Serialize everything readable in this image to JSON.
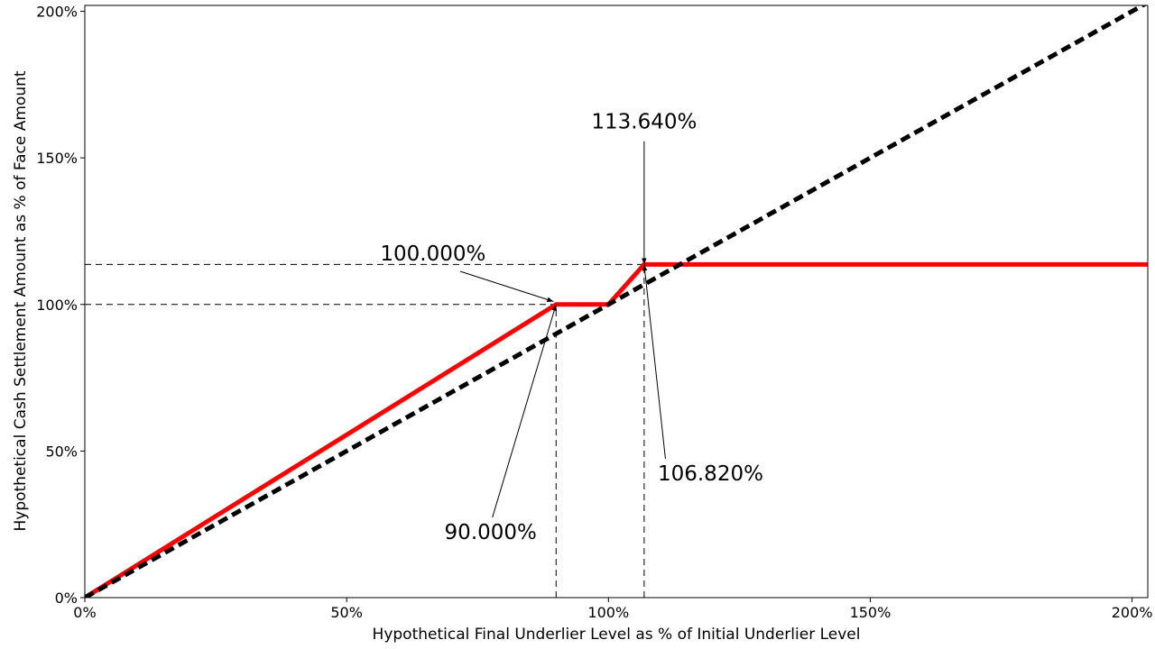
{
  "chart_data": {
    "type": "line",
    "title": "",
    "xlabel": "Hypothetical Final Underlier Level as % of Initial Underlier Level",
    "ylabel": "Hypothetical Cash Settlement Amount as % of Face Amount",
    "xlim": [
      0,
      203
    ],
    "ylim": [
      0,
      202
    ],
    "x_ticks": [
      {
        "value": 0,
        "label": "0%"
      },
      {
        "value": 50,
        "label": "50%"
      },
      {
        "value": 100,
        "label": "100%"
      },
      {
        "value": 150,
        "label": "150%"
      },
      {
        "value": 200,
        "label": "200%"
      }
    ],
    "y_ticks": [
      {
        "value": 0,
        "label": "0%"
      },
      {
        "value": 50,
        "label": "50%"
      },
      {
        "value": 100,
        "label": "100%"
      },
      {
        "value": 150,
        "label": "150%"
      },
      {
        "value": 200,
        "label": "200%"
      }
    ],
    "grid": false,
    "legend": "none",
    "series": [
      {
        "style": "solid",
        "color": "#ff0000",
        "points": [
          [
            0,
            0
          ],
          [
            90,
            100
          ],
          [
            100,
            100
          ],
          [
            106.82,
            113.64
          ],
          [
            203,
            113.64
          ]
        ]
      },
      {
        "style": "dashed",
        "color": "#000000",
        "points": [
          [
            0,
            0
          ],
          [
            203,
            203
          ]
        ]
      }
    ],
    "reference_lines": [
      {
        "orientation": "horizontal",
        "value": 113.64,
        "from": 0,
        "to": 106.82
      },
      {
        "orientation": "horizontal",
        "value": 100,
        "from": 0,
        "to": 90
      },
      {
        "orientation": "vertical",
        "value": 90,
        "from": 0,
        "to": 100
      },
      {
        "orientation": "vertical",
        "value": 106.82,
        "from": 0,
        "to": 113.64
      }
    ],
    "annotations": [
      {
        "label": "113.640%",
        "text_at": [
          106.82,
          160
        ],
        "arrow_to": [
          106.82,
          113.64
        ]
      },
      {
        "label": "100.000%",
        "text_at": [
          66.5,
          115
        ],
        "arrow_to": [
          89.5,
          101
        ]
      },
      {
        "label": "90.000%",
        "text_at": [
          77.5,
          20
        ],
        "arrow_to": [
          90,
          100
        ]
      },
      {
        "label": "106.820%",
        "text_at": [
          119.5,
          40
        ],
        "arrow_to": [
          106.82,
          113.64
        ]
      }
    ]
  }
}
